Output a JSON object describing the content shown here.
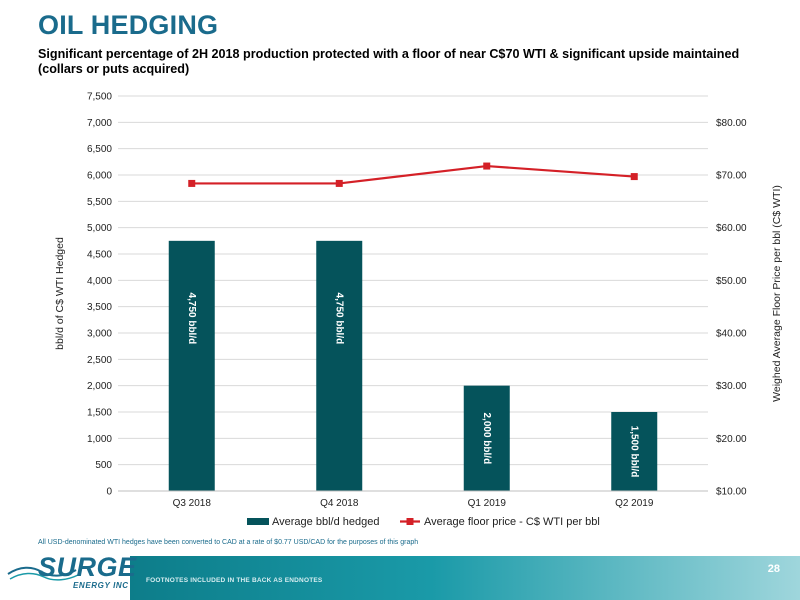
{
  "header": {
    "title": "OIL HEDGING",
    "subtitle": "Significant percentage of 2H 2018 production protected with a floor of near C$70 WTI & significant upside maintained (collars or puts acquired)"
  },
  "chart_data": {
    "type": "bar",
    "categories": [
      "Q3 2018",
      "Q4 2018",
      "Q1 2019",
      "Q2 2019"
    ],
    "series": [
      {
        "name": "Average bbl/d hedged",
        "type": "bar",
        "axis": "left",
        "values": [
          4750,
          4750,
          2000,
          1500
        ],
        "labels": [
          "4,750 bbl/d",
          "4,750 bbl/d",
          "2,000 bbl/d",
          "1,500 bbl/d"
        ],
        "color": "#05535b"
      },
      {
        "name": "Average floor price - C$ WTI per bbl",
        "type": "line",
        "axis": "right",
        "values": [
          68.4,
          68.4,
          71.7,
          69.7
        ],
        "color": "#d42027"
      }
    ],
    "ylabel": "bbl/d of C$ WTI Hedged",
    "y2label": "Weighed Average Floor Price per bbl (C$ WTI)",
    "ylim": [
      0,
      7500
    ],
    "y2lim": [
      10,
      85
    ],
    "yticks": [
      0,
      500,
      1000,
      1500,
      2000,
      2500,
      3000,
      3500,
      4000,
      4500,
      5000,
      5500,
      6000,
      6500,
      7000,
      7500
    ],
    "ytick_labels": [
      "0",
      "500",
      "1,000",
      "1,500",
      "2,000",
      "2,500",
      "3,000",
      "3,500",
      "4,000",
      "4,500",
      "5,000",
      "5,500",
      "6,000",
      "6,500",
      "7,000",
      "7,500"
    ],
    "y2ticks": [
      10,
      20,
      30,
      40,
      50,
      60,
      70,
      80
    ],
    "y2tick_labels": [
      "$10.00",
      "$20.00",
      "$30.00",
      "$40.00",
      "$50.00",
      "$60.00",
      "$70.00",
      "$80.00"
    ],
    "grid": true,
    "legend_position": "bottom"
  },
  "footnote": "All USD-denominated WTI hedges have been converted to CAD at a rate of $0.77 USD/CAD for the purposes of this graph",
  "footer": {
    "endnotes": "FOOTNOTES INCLUDED IN THE BACK AS ENDNOTES",
    "page_number": "28"
  },
  "logo": {
    "word": "SURGE",
    "sub": "ENERGY INC"
  },
  "colors": {
    "title": "#1a6b8c",
    "bar": "#05535b",
    "line": "#d42027",
    "grid": "#d9d9d9"
  }
}
